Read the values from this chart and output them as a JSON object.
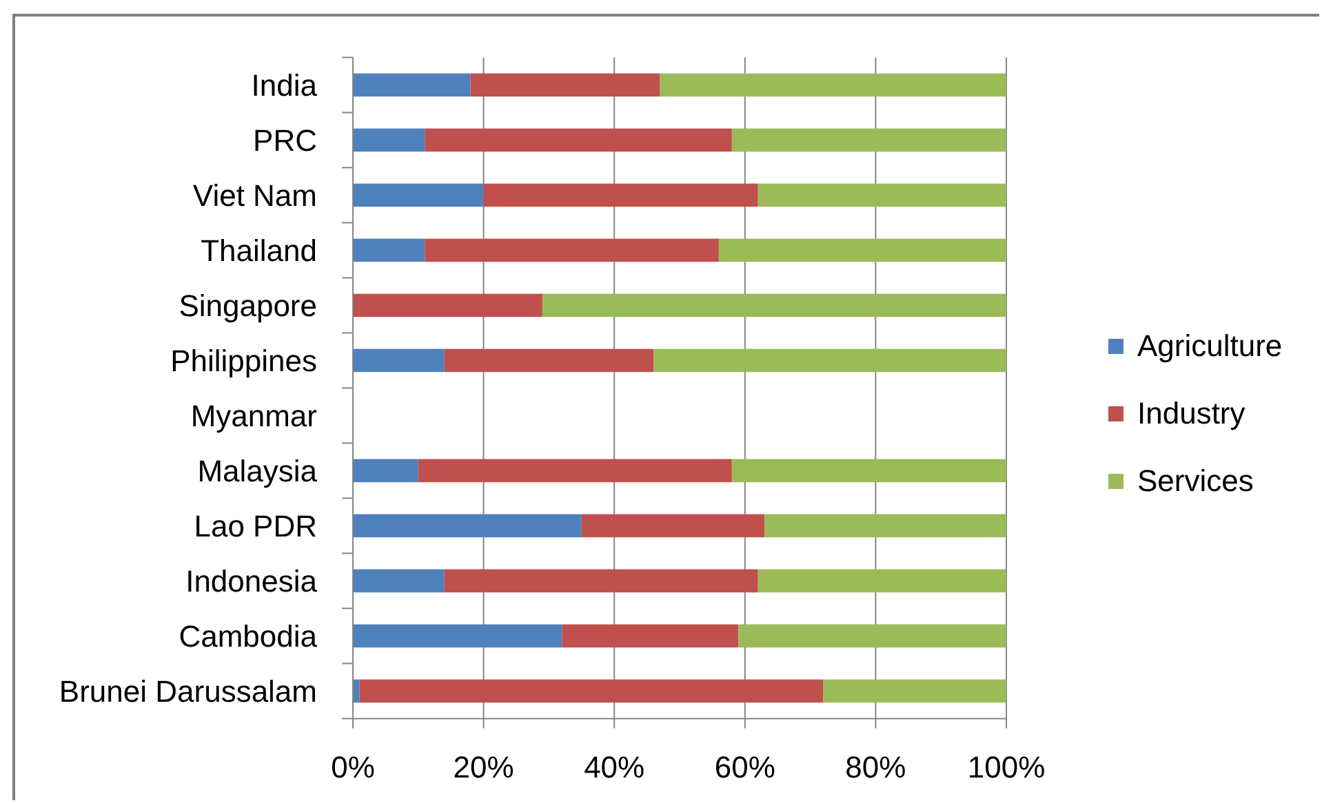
{
  "chart_data": {
    "type": "bar",
    "orientation": "horizontal",
    "stacked": true,
    "categories": [
      "India",
      "PRC",
      "Viet Nam",
      "Thailand",
      "Singapore",
      "Philippines",
      "Myanmar",
      "Malaysia",
      "Lao PDR",
      "Indonesia",
      "Cambodia",
      "Brunei Darussalam"
    ],
    "series": [
      {
        "name": "Agriculture",
        "color": "#4f81bd",
        "values": [
          18,
          11,
          20,
          11,
          0,
          14,
          null,
          10,
          35,
          14,
          32,
          1
        ]
      },
      {
        "name": "Industry",
        "color": "#c0504d",
        "values": [
          29,
          47,
          42,
          45,
          29,
          32,
          null,
          48,
          28,
          48,
          27,
          71
        ]
      },
      {
        "name": "Services",
        "color": "#9bbb59",
        "values": [
          53,
          42,
          38,
          44,
          71,
          54,
          null,
          42,
          37,
          38,
          41,
          28
        ]
      }
    ],
    "xlim": [
      0,
      100
    ],
    "xticks": [
      {
        "value": 0,
        "label": "0%"
      },
      {
        "value": 20,
        "label": "20%"
      },
      {
        "value": 40,
        "label": "40%"
      },
      {
        "value": 60,
        "label": "60%"
      },
      {
        "value": 80,
        "label": "80%"
      },
      {
        "value": 100,
        "label": "100%"
      }
    ],
    "grid": "x",
    "legend": "right"
  }
}
